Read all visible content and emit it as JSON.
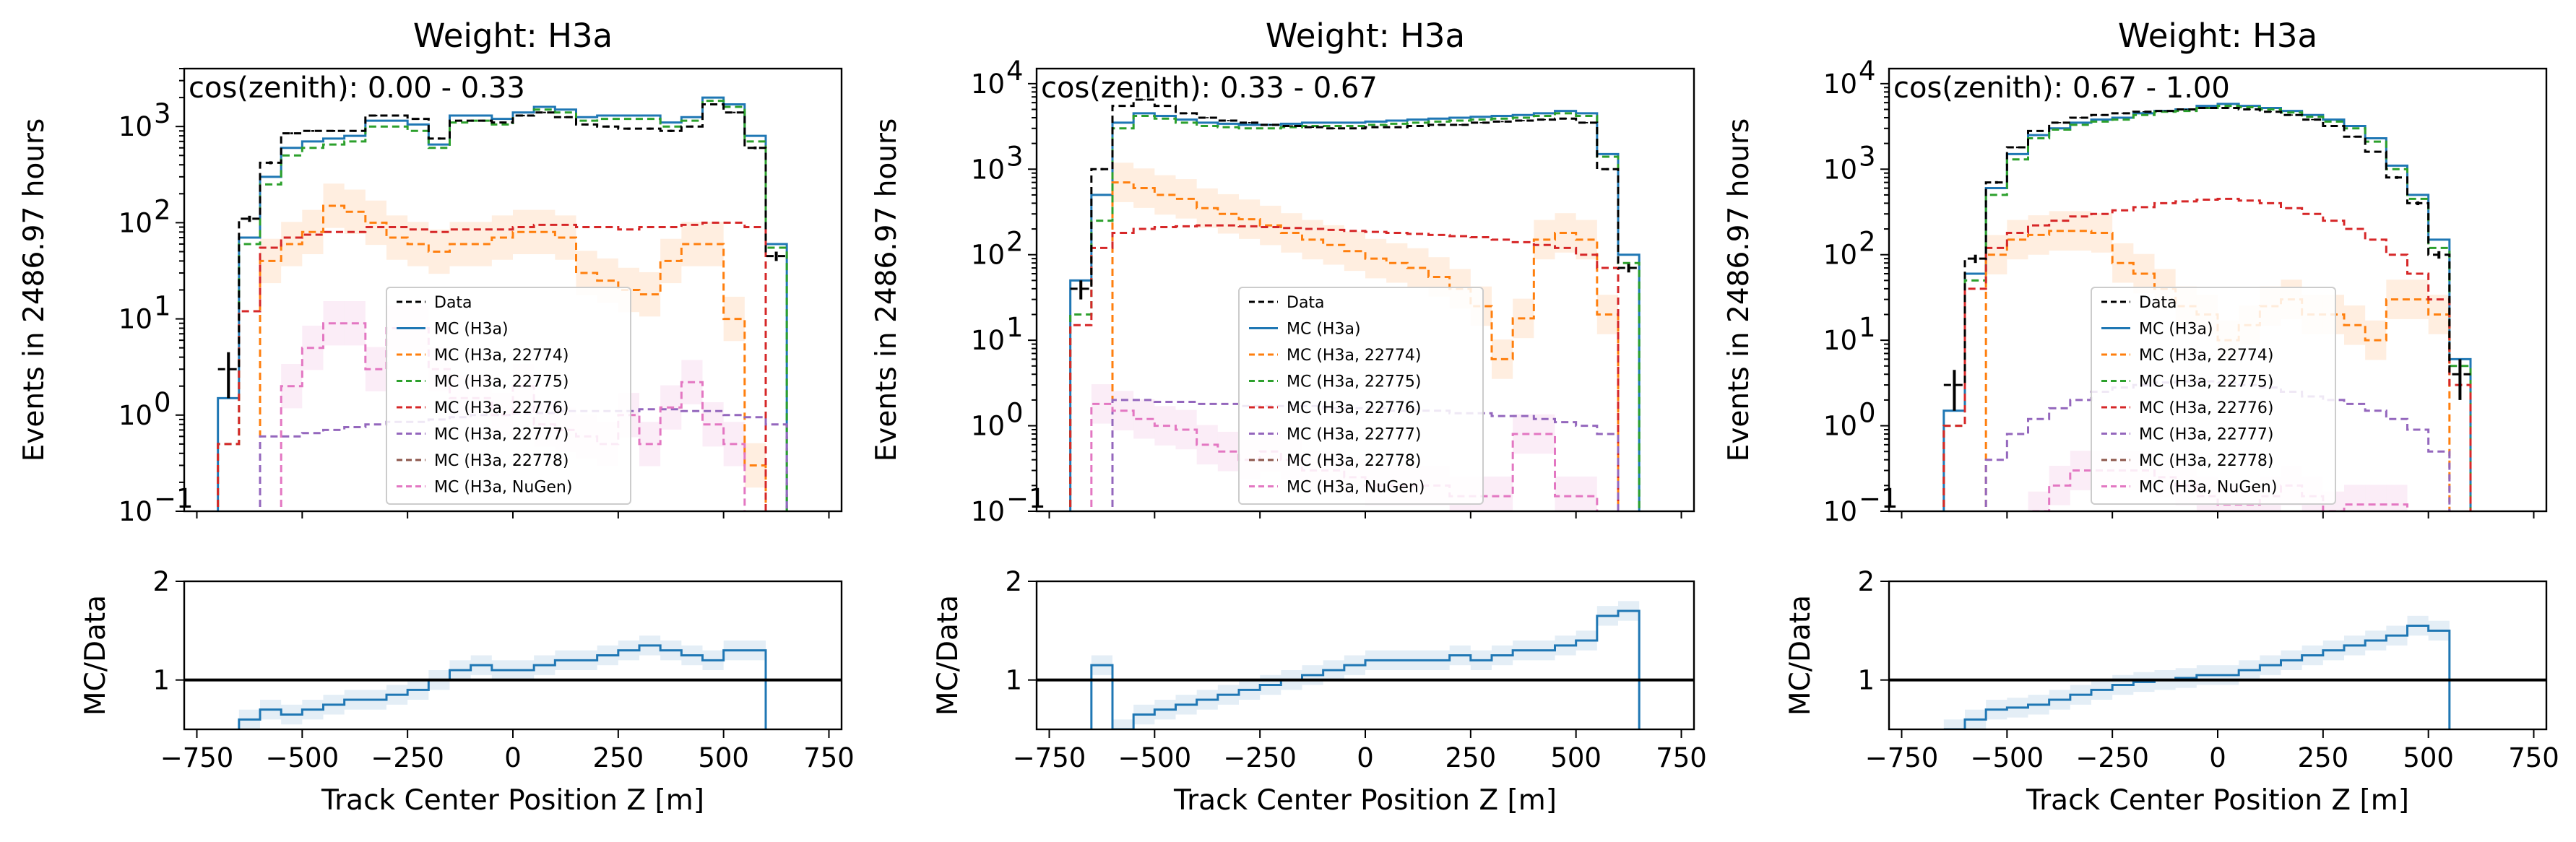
{
  "chart_data": [
    {
      "type": "line",
      "title": "Weight: H3a",
      "annotation": "cos(zenith): 0.00 - 0.33",
      "ylabel": "Events in 2486.97 hours",
      "xlim": [
        -780,
        780
      ],
      "ylim": [
        0.1,
        4000
      ],
      "yscale": "log",
      "ratio_ylabel": "MC/Data",
      "ratio_ylim": [
        0.5,
        2
      ],
      "bin_edges": [
        -700,
        -650,
        -600,
        -550,
        -500,
        -450,
        -400,
        -350,
        -300,
        -250,
        -200,
        -150,
        -100,
        -50,
        0,
        50,
        100,
        150,
        200,
        250,
        300,
        350,
        400,
        450,
        500,
        550,
        600,
        650
      ],
      "data_points": {
        "x": [
          -675,
          -625,
          -575,
          -525,
          -475,
          -425,
          -375,
          -325,
          -275,
          -225,
          -175,
          -125,
          -75,
          -25,
          25,
          75,
          125,
          175,
          225,
          275,
          325,
          375,
          425,
          475,
          525,
          575,
          625
        ],
        "y": [
          3,
          110,
          420,
          850,
          900,
          900,
          900,
          1300,
          1300,
          1200,
          750,
          1150,
          1150,
          1100,
          1300,
          1400,
          1250,
          1050,
          1000,
          950,
          950,
          900,
          1000,
          1700,
          1400,
          600,
          45
        ],
        "yerr_low": [
          1.5,
          8,
          15,
          20,
          20,
          20,
          20,
          25,
          25,
          25,
          20,
          25,
          25,
          25,
          25,
          25,
          25,
          25,
          25,
          25,
          25,
          25,
          25,
          30,
          25,
          20,
          5
        ]
      },
      "series": [
        {
          "name": "MC (H3a)",
          "color": "#1f77b4",
          "dash": "",
          "values": [
            1.5,
            70,
            300,
            600,
            700,
            750,
            800,
            1150,
            1150,
            1050,
            650,
            1300,
            1300,
            1200,
            1400,
            1600,
            1500,
            1250,
            1300,
            1300,
            1300,
            1100,
            1250,
            2000,
            1700,
            800,
            60
          ]
        },
        {
          "name": "MC (H3a, 22774)",
          "color": "#ff7f0e",
          "dash": "10,6",
          "values": [
            null,
            null,
            40,
            60,
            80,
            150,
            130,
            100,
            70,
            60,
            50,
            60,
            60,
            70,
            80,
            80,
            70,
            30,
            25,
            20,
            18,
            40,
            60,
            60,
            10,
            0.3,
            null
          ]
        },
        {
          "name": "MC (H3a, 22775)",
          "color": "#2ca02c",
          "dash": "10,6",
          "values": [
            0.5,
            60,
            250,
            500,
            600,
            650,
            700,
            1000,
            1000,
            900,
            600,
            1100,
            1150,
            1050,
            1300,
            1500,
            1400,
            1150,
            1200,
            1200,
            1200,
            1000,
            1150,
            1850,
            1600,
            700,
            55
          ]
        },
        {
          "name": "MC (H3a, 22776)",
          "color": "#d62728",
          "dash": "10,6",
          "values": [
            0.5,
            12,
            55,
            70,
            75,
            80,
            80,
            90,
            90,
            85,
            80,
            85,
            85,
            85,
            90,
            95,
            95,
            90,
            90,
            85,
            90,
            90,
            95,
            100,
            100,
            90,
            null
          ]
        },
        {
          "name": "MC (H3a, 22777)",
          "color": "#9467bd",
          "dash": "10,6",
          "values": [
            null,
            null,
            0.6,
            0.6,
            0.65,
            0.7,
            0.75,
            0.8,
            0.85,
            0.85,
            0.9,
            0.95,
            1.0,
            1.0,
            1.05,
            1.05,
            1.1,
            1.1,
            1.1,
            1.1,
            1.15,
            1.15,
            1.1,
            1.1,
            1.0,
            0.95,
            0.8
          ]
        },
        {
          "name": "MC (H3a, 22778)",
          "color": "#8c564b",
          "dash": "10,6",
          "values": []
        },
        {
          "name": "MC (H3a, NuGen)",
          "color": "#e377c2",
          "dash": "10,6",
          "values": [
            null,
            null,
            null,
            2,
            5,
            9,
            9,
            3,
            8,
            8,
            3,
            1.5,
            1.5,
            1,
            2,
            0.8,
            0.7,
            0.6,
            0.5,
            1,
            0.5,
            1.2,
            2.2,
            0.8,
            0.5,
            null,
            null
          ]
        }
      ],
      "ratio": [
        0.4,
        0.6,
        0.7,
        0.65,
        0.7,
        0.75,
        0.8,
        0.8,
        0.85,
        0.9,
        1.0,
        1.1,
        1.15,
        1.1,
        1.1,
        1.15,
        1.2,
        1.2,
        1.25,
        1.3,
        1.35,
        1.3,
        1.25,
        1.2,
        1.3,
        1.3,
        0.3
      ]
    },
    {
      "type": "line",
      "title": "Weight: H3a",
      "annotation": "cos(zenith): 0.33 - 0.67",
      "ylabel": "Events in 2486.97 hours",
      "xlim": [
        -780,
        780
      ],
      "ylim": [
        0.1,
        15000
      ],
      "yscale": "log",
      "ratio_ylabel": "MC/Data",
      "ratio_ylim": [
        0.5,
        2
      ],
      "bin_edges": [
        -700,
        -650,
        -600,
        -550,
        -500,
        -450,
        -400,
        -350,
        -300,
        -250,
        -200,
        -150,
        -100,
        -50,
        0,
        50,
        100,
        150,
        200,
        250,
        300,
        350,
        400,
        450,
        500,
        550,
        600,
        650
      ],
      "data_points": {
        "x": [
          -675,
          -625,
          -575,
          -525,
          -475,
          -425,
          -375,
          -325,
          -275,
          -225,
          -175,
          -125,
          -75,
          -25,
          25,
          75,
          125,
          175,
          225,
          275,
          325,
          375,
          425,
          475,
          525,
          575,
          625
        ],
        "y": [
          40,
          1000,
          5500,
          6500,
          5500,
          4500,
          4000,
          3700,
          3500,
          3300,
          3200,
          3100,
          3000,
          3000,
          3100,
          3100,
          3200,
          3300,
          3300,
          3500,
          3600,
          3700,
          3800,
          3900,
          3500,
          1000,
          70
        ],
        "yerr_low": [
          10,
          30,
          70,
          80,
          70,
          65,
          60,
          60,
          60,
          55,
          55,
          55,
          55,
          55,
          55,
          55,
          55,
          55,
          55,
          55,
          60,
          60,
          60,
          60,
          60,
          30,
          8
        ]
      },
      "series": [
        {
          "name": "MC (H3a)",
          "color": "#1f77b4",
          "dash": "",
          "values": [
            50,
            500,
            3500,
            4500,
            4200,
            3800,
            3500,
            3400,
            3300,
            3300,
            3400,
            3500,
            3500,
            3500,
            3600,
            3700,
            3800,
            3900,
            4000,
            4100,
            4200,
            4300,
            4500,
            4800,
            4500,
            1500,
            100
          ]
        },
        {
          "name": "MC (H3a, 22774)",
          "color": "#ff7f0e",
          "dash": "10,6",
          "values": [
            null,
            null,
            700,
            600,
            500,
            450,
            350,
            300,
            260,
            220,
            180,
            150,
            130,
            110,
            90,
            80,
            70,
            55,
            40,
            25,
            6,
            18,
            150,
            180,
            150,
            20,
            null
          ]
        },
        {
          "name": "MC (H3a, 22775)",
          "color": "#2ca02c",
          "dash": "10,6",
          "values": [
            20,
            250,
            3000,
            4200,
            3900,
            3500,
            3200,
            3100,
            3000,
            3000,
            3100,
            3200,
            3200,
            3200,
            3300,
            3400,
            3500,
            3600,
            3700,
            3800,
            3900,
            4000,
            4200,
            4500,
            4200,
            1400,
            80
          ]
        },
        {
          "name": "MC (H3a, 22776)",
          "color": "#d62728",
          "dash": "10,6",
          "values": [
            15,
            120,
            180,
            200,
            210,
            215,
            220,
            220,
            215,
            210,
            205,
            200,
            195,
            190,
            185,
            180,
            175,
            170,
            165,
            160,
            150,
            140,
            130,
            120,
            100,
            70,
            null
          ]
        },
        {
          "name": "MC (H3a, 22777)",
          "color": "#9467bd",
          "dash": "10,6",
          "values": [
            null,
            null,
            2,
            2,
            1.9,
            1.9,
            1.8,
            1.8,
            1.7,
            1.7,
            1.7,
            1.7,
            1.6,
            1.6,
            1.6,
            1.5,
            1.5,
            1.5,
            1.4,
            1.4,
            1.3,
            1.3,
            1.2,
            1.1,
            1.0,
            0.8,
            null
          ]
        },
        {
          "name": "MC (H3a, 22778)",
          "color": "#8c564b",
          "dash": "10,6",
          "values": []
        },
        {
          "name": "MC (H3a, NuGen)",
          "color": "#e377c2",
          "dash": "10,6",
          "values": [
            null,
            1.8,
            1.5,
            1.2,
            1.0,
            0.9,
            0.6,
            0.5,
            0.4,
            0.5,
            0.4,
            0.3,
            0.3,
            0.25,
            0.2,
            0.2,
            0.2,
            0.2,
            0.15,
            0.15,
            0.15,
            0.8,
            0.8,
            0.15,
            0.15,
            null,
            null
          ]
        }
      ],
      "ratio": [
        0.4,
        1.15,
        0.5,
        0.65,
        0.7,
        0.75,
        0.8,
        0.85,
        0.9,
        0.95,
        1.0,
        1.05,
        1.1,
        1.15,
        1.2,
        1.2,
        1.2,
        1.2,
        1.25,
        1.2,
        1.25,
        1.3,
        1.3,
        1.35,
        1.4,
        1.65,
        1.7
      ]
    },
    {
      "type": "line",
      "title": "Weight: H3a",
      "annotation": "cos(zenith): 0.67 - 1.00",
      "ylabel": "Events in 2486.97 hours",
      "xlim": [
        -780,
        780
      ],
      "ylim": [
        0.1,
        15000
      ],
      "yscale": "log",
      "ratio_ylabel": "MC/Data",
      "ratio_ylim": [
        0.5,
        2
      ],
      "bin_edges": [
        -650,
        -600,
        -550,
        -500,
        -450,
        -400,
        -350,
        -300,
        -250,
        -200,
        -150,
        -100,
        -50,
        0,
        50,
        100,
        150,
        200,
        250,
        300,
        350,
        400,
        450,
        500,
        550,
        600
      ],
      "data_points": {
        "x": [
          -625,
          -575,
          -525,
          -475,
          -425,
          -375,
          -325,
          -275,
          -225,
          -175,
          -125,
          -75,
          -25,
          25,
          75,
          125,
          175,
          225,
          275,
          325,
          375,
          425,
          475,
          525,
          575
        ],
        "y": [
          3,
          90,
          700,
          1800,
          2800,
          3500,
          4000,
          4300,
          4500,
          4700,
          4800,
          5000,
          5200,
          5200,
          5000,
          4700,
          4300,
          3800,
          3200,
          2400,
          1600,
          800,
          400,
          100,
          4
        ],
        "yerr_low": [
          1.5,
          10,
          25,
          40,
          50,
          55,
          60,
          65,
          65,
          65,
          65,
          65,
          65,
          65,
          65,
          65,
          65,
          60,
          55,
          50,
          40,
          30,
          20,
          10,
          2
        ]
      },
      "series": [
        {
          "name": "MC (H3a)",
          "color": "#1f77b4",
          "dash": "",
          "values": [
            1.5,
            60,
            600,
            1500,
            2500,
            3000,
            3500,
            3800,
            4000,
            4500,
            4800,
            5000,
            5500,
            5800,
            5500,
            5200,
            4800,
            4300,
            3800,
            3200,
            2300,
            1100,
            500,
            150,
            6
          ]
        },
        {
          "name": "MC (H3a, 22774)",
          "color": "#ff7f0e",
          "dash": "10,6",
          "values": [
            null,
            null,
            100,
            150,
            170,
            190,
            190,
            180,
            80,
            60,
            40,
            25,
            20,
            10,
            15,
            25,
            30,
            20,
            20,
            15,
            10,
            30,
            30,
            20,
            null
          ]
        },
        {
          "name": "MC (H3a, 22775)",
          "color": "#2ca02c",
          "dash": "10,6",
          "values": [
            1,
            50,
            500,
            1300,
            2300,
            2900,
            3300,
            3600,
            3800,
            4300,
            4700,
            4800,
            5200,
            5500,
            5300,
            5000,
            4600,
            4100,
            3600,
            3000,
            2100,
            1000,
            450,
            120,
            5
          ]
        },
        {
          "name": "MC (H3a, 22776)",
          "color": "#d62728",
          "dash": "10,6",
          "values": [
            1,
            40,
            120,
            180,
            220,
            250,
            280,
            300,
            330,
            360,
            400,
            420,
            440,
            450,
            430,
            400,
            350,
            300,
            250,
            200,
            150,
            100,
            60,
            30,
            3
          ]
        },
        {
          "name": "MC (H3a, 22777)",
          "color": "#9467bd",
          "dash": "10,6",
          "values": [
            null,
            null,
            0.4,
            0.8,
            1.2,
            1.6,
            2,
            2.5,
            2.8,
            3,
            3.2,
            3.3,
            3.3,
            3.2,
            3,
            2.8,
            2.5,
            2.2,
            2,
            1.8,
            1.5,
            1.2,
            0.9,
            0.5,
            null
          ]
        },
        {
          "name": "MC (H3a, 22778)",
          "color": "#8c564b",
          "dash": "10,6",
          "values": []
        },
        {
          "name": "MC (H3a, NuGen)",
          "color": "#e377c2",
          "dash": "10,6",
          "values": [
            null,
            null,
            null,
            null,
            0.1,
            0.2,
            0.3,
            0.3,
            0.3,
            0.3,
            0.25,
            0.2,
            0.15,
            0.12,
            0.12,
            0.15,
            0.2,
            0.15,
            0.1,
            0.12,
            0.12,
            0.12,
            null,
            null,
            null
          ]
        }
      ],
      "ratio": [
        0.5,
        0.6,
        0.7,
        0.72,
        0.75,
        0.8,
        0.85,
        0.9,
        0.95,
        0.98,
        1.0,
        1.02,
        1.05,
        1.05,
        1.1,
        1.15,
        1.2,
        1.25,
        1.3,
        1.35,
        1.4,
        1.45,
        1.55,
        1.5,
        0.3
      ]
    }
  ],
  "x_axis": {
    "label": "Track Center Position Z [m]",
    "ticks": [
      -750,
      -500,
      -250,
      0,
      250,
      500,
      750
    ],
    "tick_labels": [
      "−750",
      "−500",
      "−250",
      "0",
      "250",
      "500",
      "750"
    ]
  },
  "y_axis": {
    "ticks": [
      0.1,
      1,
      10,
      100,
      1000,
      10000
    ],
    "tick_labels": [
      "10",
      "10",
      "10",
      "10",
      "10",
      "10"
    ],
    "tick_exponents": [
      "−1",
      "0",
      "1",
      "2",
      "3",
      "4"
    ]
  },
  "ratio_axis": {
    "ticks": [
      1,
      2
    ],
    "tick_labels": [
      "1",
      "2"
    ]
  },
  "legend": {
    "entries": [
      "Data",
      "MC (H3a)",
      "MC (H3a, 22774)",
      "MC (H3a, 22775)",
      "MC (H3a, 22776)",
      "MC (H3a, 22777)",
      "MC (H3a, 22778)",
      "MC (H3a, NuGen)"
    ],
    "colors": [
      "#000000",
      "#1f77b4",
      "#ff7f0e",
      "#2ca02c",
      "#d62728",
      "#9467bd",
      "#8c564b",
      "#e377c2"
    ],
    "dashed": [
      true,
      false,
      true,
      true,
      true,
      true,
      true,
      true
    ],
    "placement": "lower-center"
  }
}
